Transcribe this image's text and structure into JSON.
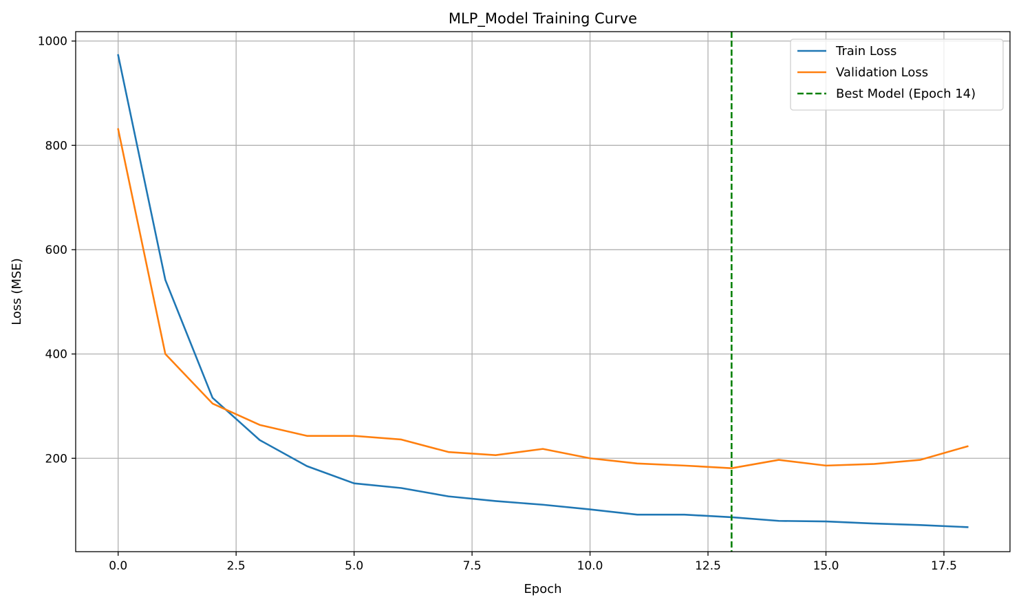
{
  "chart_data": {
    "type": "line",
    "title": "MLP_Model Training Curve",
    "xlabel": "Epoch",
    "ylabel": "Loss (MSE)",
    "xlim": [
      -0.9,
      18.9
    ],
    "ylim": [
      21,
      1018
    ],
    "xticks": [
      0.0,
      2.5,
      5.0,
      7.5,
      10.0,
      12.5,
      15.0,
      17.5
    ],
    "xtick_labels": [
      "0.0",
      "2.5",
      "5.0",
      "7.5",
      "10.0",
      "12.5",
      "15.0",
      "17.5"
    ],
    "yticks": [
      200,
      400,
      600,
      800,
      1000
    ],
    "ytick_labels": [
      "200",
      "400",
      "600",
      "800",
      "1000"
    ],
    "grid": true,
    "legend_position": "top-right",
    "x": [
      0,
      1,
      2,
      3,
      4,
      5,
      6,
      7,
      8,
      9,
      10,
      11,
      12,
      13,
      14,
      15,
      16,
      17,
      18
    ],
    "series": [
      {
        "name": "Train Loss",
        "color": "#1f77b4",
        "style": "solid",
        "values": [
          973,
          542,
          316,
          235,
          185,
          152,
          143,
          127,
          118,
          111,
          102,
          92,
          92,
          87,
          80,
          79,
          75,
          72,
          68
        ]
      },
      {
        "name": "Validation Loss",
        "color": "#ff7f0e",
        "style": "solid",
        "values": [
          831,
          400,
          305,
          264,
          243,
          243,
          236,
          212,
          206,
          218,
          200,
          190,
          186,
          181,
          197,
          186,
          189,
          197,
          223
        ]
      }
    ],
    "vlines": [
      {
        "name": "Best Model (Epoch 14)",
        "x": 13,
        "color": "#008000",
        "style": "dashed"
      }
    ]
  }
}
